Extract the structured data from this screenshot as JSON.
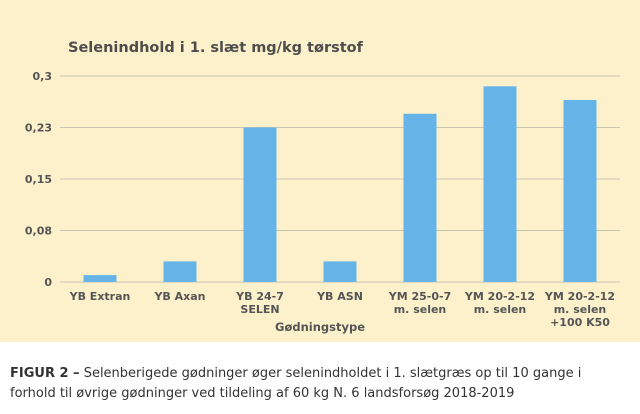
{
  "chart_data": {
    "type": "bar",
    "title": "Selenindhold i 1. slæt mg/kg tørstof",
    "xlabel": "Gødningstype",
    "ylabel": "",
    "categories": [
      [
        "YB Extran"
      ],
      [
        "YB Axan"
      ],
      [
        "YB 24-7",
        "SELEN"
      ],
      [
        "YB ASN"
      ],
      [
        "YM 25-0-7",
        "m. selen"
      ],
      [
        "YM 20-2-12",
        "m. selen"
      ],
      [
        "YM 20-2-12",
        "m. selen",
        "+100 K50"
      ]
    ],
    "values": [
      0.01,
      0.03,
      0.225,
      0.03,
      0.245,
      0.285,
      0.265
    ],
    "ylim": [
      0,
      0.3
    ],
    "ytick_values": [
      0,
      0.075,
      0.15,
      0.225,
      0.3
    ],
    "ytick_labels": [
      "0",
      "0,08",
      "0,15",
      "0,23",
      "0,3"
    ],
    "grid": true,
    "legend": "none",
    "colors": {
      "bar": "#64b4e8",
      "grid": "#c9c3b2",
      "axis_text": "#555555",
      "background": "#fdf1cc"
    }
  },
  "caption": {
    "lead": "FIGUR 2 –",
    "text": " Selenberigede gødninger øger selenindholdet i 1. slætgræs op til 10 gange i forhold til øvrige gødninger ved tildeling af 60 kg N. 6 landsforsøg 2018-2019"
  }
}
